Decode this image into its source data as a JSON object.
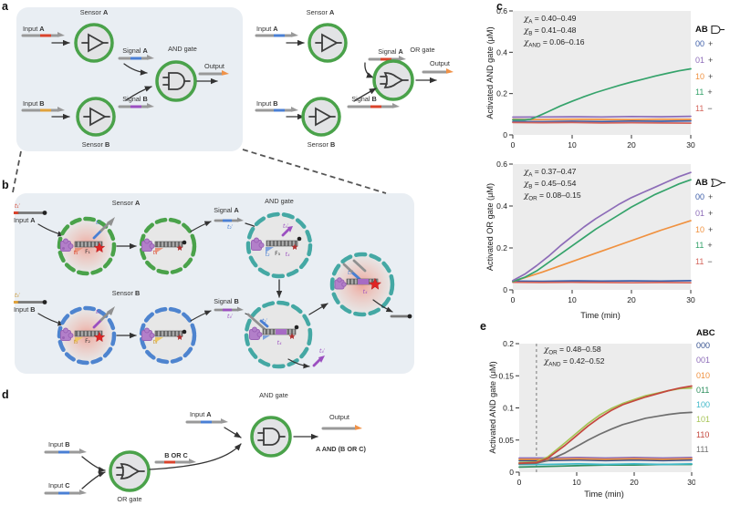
{
  "colors": {
    "panel_box_bg": "#e9eef3",
    "plot_bg": "#ececec",
    "green_ring": "#4aa24a",
    "blue_ring": "#4e84cf",
    "teal_ring": "#44a8a4",
    "strand_gray": "#999999",
    "red_domain": "#d9432c",
    "yellow_domain": "#e0a23c",
    "blue_domain": "#4a7fd4",
    "purple_domain": "#9b4fc0",
    "orange_output": "#f09248",
    "fluorophore_red": "#e02525",
    "protein_purple": "#b27fc9"
  },
  "panel_labels": {
    "a": "a",
    "b": "b",
    "c": "c",
    "d": "d",
    "e": "e"
  },
  "panel_a": {
    "and_circuit": {
      "sensor_a": {
        "t": "Sensor ",
        "b": "A"
      },
      "sensor_b": {
        "t": "Sensor ",
        "b": "B"
      },
      "input_a": {
        "t": "Input ",
        "b": "A"
      },
      "input_b": {
        "t": "Input ",
        "b": "B"
      },
      "signal_a": {
        "t": "Signal ",
        "b": "A"
      },
      "signal_b": {
        "t": "Signal ",
        "b": "B"
      },
      "gate_label": "AND gate",
      "output_label": "Output"
    },
    "or_circuit": {
      "sensor_a": {
        "t": "Sensor ",
        "b": "A"
      },
      "sensor_b": {
        "t": "Sensor ",
        "b": "B"
      },
      "input_a": {
        "t": "Input ",
        "b": "A"
      },
      "input_b": {
        "t": "Input ",
        "b": "B"
      },
      "signal_a": {
        "t": "Signal ",
        "b": "A"
      },
      "signal_b": {
        "t": "Signal ",
        "b": "B"
      },
      "gate_label": "OR gate",
      "output_label": "Output"
    }
  },
  "panel_b": {
    "sensor_a": {
      "t": "Sensor ",
      "b": "A"
    },
    "sensor_b": {
      "t": "Sensor ",
      "b": "B"
    },
    "input_a": {
      "t": "Input ",
      "b": "A"
    },
    "input_b": {
      "t": "Input ",
      "b": "B"
    },
    "signal_a": {
      "t": "Signal ",
      "b": "A"
    },
    "signal_b": {
      "t": "Signal ",
      "b": "B"
    },
    "gate_label": "AND gate",
    "tags": {
      "t1p": "t₁′",
      "t1": "t₁",
      "t2p": "t₂′",
      "t2": "t₂",
      "t3p": "t₃′",
      "t3": "t₃",
      "t4p": "t₄′",
      "t4": "t₄",
      "f1": "F₁",
      "f2": "F₂",
      "f3": "F₃"
    }
  },
  "panel_d": {
    "input_a": {
      "t": "Input ",
      "b": "A"
    },
    "input_b": {
      "t": "Input ",
      "b": "B"
    },
    "input_c": {
      "t": "Input ",
      "b": "C"
    },
    "or_gate": "OR gate",
    "and_gate": "AND gate",
    "b_or_c": "B OR C",
    "output": "Output",
    "result": "A AND (B OR C)"
  },
  "chart_data": {
    "c_top": {
      "type": "line",
      "xlabel": "",
      "ylabel": "Activated AND gate (μM)",
      "xlim": [
        0,
        30
      ],
      "ylim": [
        0,
        0.6
      ],
      "xticks": [
        0,
        10,
        20,
        30
      ],
      "yticks": [
        0,
        0.2,
        0.4,
        0.6
      ],
      "annotations": [
        {
          "sub": "A",
          "rest": "= 0.40–0.49"
        },
        {
          "sub": "B",
          "rest": "= 0.41–0.48"
        },
        {
          "sub": "AND",
          "rest": "= 0.06–0.16"
        }
      ],
      "legend": {
        "header": "AB",
        "icon": "and-gate",
        "items": [
          {
            "label": "00",
            "suffix": "+",
            "color": "#3c5da8"
          },
          {
            "label": "01",
            "suffix": "+",
            "color": "#8d6cb8"
          },
          {
            "label": "10",
            "suffix": "+",
            "color": "#f0913f"
          },
          {
            "label": "11",
            "suffix": "+",
            "color": "#35a36b"
          },
          {
            "label": "11",
            "suffix": "−",
            "color": "#d4655c"
          }
        ]
      },
      "series": [
        {
          "name": "00 +",
          "color": "#3c5da8",
          "x": [
            0,
            5,
            10,
            15,
            20,
            25,
            30
          ],
          "y": [
            0.065,
            0.064,
            0.066,
            0.065,
            0.067,
            0.066,
            0.068
          ]
        },
        {
          "name": "01 +",
          "color": "#8d6cb8",
          "x": [
            0,
            5,
            10,
            15,
            20,
            25,
            30
          ],
          "y": [
            0.086,
            0.087,
            0.088,
            0.087,
            0.089,
            0.088,
            0.09
          ]
        },
        {
          "name": "10 +",
          "color": "#f0913f",
          "x": [
            0,
            5,
            10,
            15,
            20,
            25,
            30
          ],
          "y": [
            0.075,
            0.074,
            0.076,
            0.075,
            0.074,
            0.076,
            0.075
          ]
        },
        {
          "name": "11 −",
          "color": "#d4655c",
          "x": [
            0,
            5,
            10,
            15,
            20,
            25,
            30
          ],
          "y": [
            0.06,
            0.059,
            0.06,
            0.058,
            0.059,
            0.058,
            0.057
          ]
        },
        {
          "name": "11 +",
          "color": "#35a36b",
          "x": [
            0,
            1,
            2,
            3,
            4,
            5,
            6,
            8,
            10,
            12,
            14,
            16,
            18,
            20,
            22,
            24,
            26,
            28,
            30
          ],
          "y": [
            0.073,
            0.073,
            0.073,
            0.076,
            0.088,
            0.1,
            0.113,
            0.14,
            0.163,
            0.185,
            0.205,
            0.223,
            0.24,
            0.256,
            0.27,
            0.285,
            0.298,
            0.31,
            0.32
          ]
        }
      ]
    },
    "c_bottom": {
      "type": "line",
      "xlabel": "Time (min)",
      "ylabel": "Activated OR gate (μM)",
      "xlim": [
        0,
        30
      ],
      "ylim": [
        0,
        0.6
      ],
      "xticks": [
        0,
        10,
        20,
        30
      ],
      "yticks": [
        0,
        0.2,
        0.4,
        0.6
      ],
      "annotations": [
        {
          "sub": "A",
          "rest": "= 0.37–0.47"
        },
        {
          "sub": "B",
          "rest": "= 0.45–0.54"
        },
        {
          "sub": "OR",
          "rest": "= 0.08–0.15"
        }
      ],
      "legend": {
        "header": "AB",
        "icon": "or-gate",
        "items": [
          {
            "label": "00",
            "suffix": "+",
            "color": "#3c5da8"
          },
          {
            "label": "01",
            "suffix": "+",
            "color": "#8d6cb8"
          },
          {
            "label": "10",
            "suffix": "+",
            "color": "#f0913f"
          },
          {
            "label": "11",
            "suffix": "+",
            "color": "#35a36b"
          },
          {
            "label": "11",
            "suffix": "−",
            "color": "#d4655c"
          }
        ]
      },
      "series": [
        {
          "name": "00 +",
          "color": "#3c5da8",
          "x": [
            0,
            5,
            10,
            15,
            20,
            25,
            30
          ],
          "y": [
            0.042,
            0.041,
            0.043,
            0.042,
            0.043,
            0.042,
            0.044
          ]
        },
        {
          "name": "11 −",
          "color": "#d4655c",
          "x": [
            0,
            5,
            10,
            15,
            20,
            25,
            30
          ],
          "y": [
            0.036,
            0.035,
            0.036,
            0.035,
            0.034,
            0.035,
            0.034
          ]
        },
        {
          "name": "10 +",
          "color": "#f0913f",
          "x": [
            0,
            5,
            10,
            15,
            20,
            25,
            30
          ],
          "y": [
            0.04,
            0.085,
            0.135,
            0.185,
            0.235,
            0.285,
            0.33
          ]
        },
        {
          "name": "11 +",
          "color": "#35a36b",
          "x": [
            0,
            2,
            4,
            6,
            8,
            10,
            12,
            14,
            16,
            18,
            20,
            22,
            24,
            26,
            28,
            30
          ],
          "y": [
            0.04,
            0.06,
            0.09,
            0.13,
            0.17,
            0.21,
            0.25,
            0.29,
            0.325,
            0.36,
            0.395,
            0.425,
            0.455,
            0.48,
            0.505,
            0.525
          ]
        },
        {
          "name": "01 +",
          "color": "#8d6cb8",
          "x": [
            0,
            2,
            4,
            6,
            8,
            10,
            12,
            14,
            16,
            18,
            20,
            22,
            24,
            26,
            28,
            30
          ],
          "y": [
            0.045,
            0.075,
            0.115,
            0.16,
            0.21,
            0.255,
            0.3,
            0.34,
            0.375,
            0.41,
            0.44,
            0.465,
            0.49,
            0.515,
            0.54,
            0.56
          ]
        }
      ]
    },
    "e": {
      "type": "line",
      "xlabel": "Time (min)",
      "ylabel": "Activated AND gate (μM)",
      "xlim": [
        0,
        30
      ],
      "ylim": [
        0,
        0.2
      ],
      "xticks": [
        0,
        10,
        20,
        30
      ],
      "yticks": [
        0,
        0.05,
        0.1,
        0.15,
        0.2
      ],
      "vline_x": 3,
      "annotations": [
        {
          "sub": "OR",
          "rest": "= 0.48–0.58"
        },
        {
          "sub": "AND",
          "rest": "= 0.42–0.52"
        }
      ],
      "legend": {
        "header": "ABC",
        "items": [
          {
            "label": "000",
            "color": "#35518f"
          },
          {
            "label": "001",
            "color": "#8d6cb8"
          },
          {
            "label": "010",
            "color": "#f0913f"
          },
          {
            "label": "011",
            "color": "#2f8f5f"
          },
          {
            "label": "100",
            "color": "#3fb8c9"
          },
          {
            "label": "101",
            "color": "#a6c455"
          },
          {
            "label": "110",
            "color": "#c4473d"
          },
          {
            "label": "111",
            "color": "#6f6f6f"
          }
        ]
      },
      "series": [
        {
          "name": "000",
          "color": "#35518f",
          "x": [
            0,
            5,
            10,
            15,
            20,
            25,
            30
          ],
          "y": [
            0.018,
            0.018,
            0.019,
            0.018,
            0.019,
            0.018,
            0.019
          ]
        },
        {
          "name": "001",
          "color": "#8d6cb8",
          "x": [
            0,
            5,
            10,
            15,
            20,
            25,
            30
          ],
          "y": [
            0.022,
            0.022,
            0.023,
            0.022,
            0.023,
            0.022,
            0.023
          ]
        },
        {
          "name": "010",
          "color": "#f0913f",
          "x": [
            0,
            5,
            10,
            15,
            20,
            25,
            30
          ],
          "y": [
            0.02,
            0.02,
            0.021,
            0.02,
            0.021,
            0.02,
            0.021
          ]
        },
        {
          "name": "011",
          "color": "#2f8f5f",
          "x": [
            0,
            5,
            10,
            15,
            20,
            25,
            30
          ],
          "y": [
            0.008,
            0.009,
            0.01,
            0.011,
            0.011,
            0.012,
            0.012
          ]
        },
        {
          "name": "100",
          "color": "#3fb8c9",
          "x": [
            0,
            5,
            10,
            15,
            20,
            25,
            30
          ],
          "y": [
            0.012,
            0.012,
            0.013,
            0.012,
            0.013,
            0.012,
            0.013
          ]
        },
        {
          "name": "111",
          "color": "#6f6f6f",
          "x": [
            0,
            3,
            5,
            8,
            10,
            12,
            14,
            16,
            18,
            20,
            22,
            24,
            26,
            28,
            30
          ],
          "y": [
            0.013,
            0.014,
            0.018,
            0.03,
            0.04,
            0.05,
            0.059,
            0.067,
            0.074,
            0.079,
            0.084,
            0.087,
            0.09,
            0.092,
            0.093
          ]
        },
        {
          "name": "101",
          "color": "#a6c455",
          "x": [
            0,
            3,
            5,
            8,
            10,
            12,
            14,
            16,
            18,
            20,
            22,
            24,
            26,
            28,
            30
          ],
          "y": [
            0.015,
            0.016,
            0.024,
            0.046,
            0.061,
            0.076,
            0.089,
            0.099,
            0.107,
            0.113,
            0.119,
            0.123,
            0.127,
            0.13,
            0.131
          ]
        },
        {
          "name": "110",
          "color": "#c4473d",
          "x": [
            0,
            3,
            5,
            8,
            10,
            12,
            14,
            16,
            18,
            20,
            22,
            24,
            26,
            28,
            30
          ],
          "y": [
            0.014,
            0.015,
            0.022,
            0.042,
            0.057,
            0.072,
            0.085,
            0.096,
            0.105,
            0.111,
            0.117,
            0.122,
            0.127,
            0.131,
            0.134
          ]
        }
      ]
    }
  }
}
